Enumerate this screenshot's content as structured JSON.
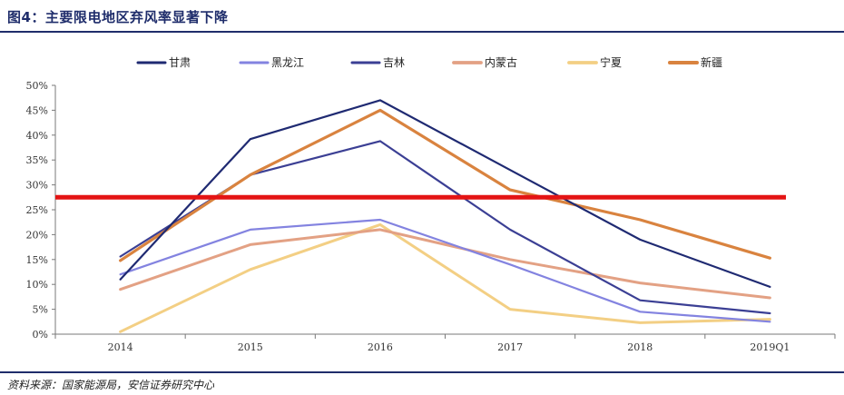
{
  "header": {
    "title": "图4：主要限电地区弃风率显著下降"
  },
  "footer": {
    "source": "资料来源：国家能源局，安信证券研究中心"
  },
  "chart_data": {
    "type": "line",
    "title": "主要限电地区弃风率显著下降",
    "xlabel": "",
    "ylabel": "",
    "categories": [
      "2014",
      "2015",
      "2016",
      "2017",
      "2018",
      "2019Q1"
    ],
    "ylim": [
      0,
      50
    ],
    "yticks": [
      "0%",
      "5%",
      "10%",
      "15%",
      "20%",
      "25%",
      "30%",
      "35%",
      "40%",
      "45%",
      "50%"
    ],
    "series": [
      {
        "name": "甘肃",
        "color": "#1f2a72",
        "values": [
          11,
          39.2,
          47,
          33,
          19,
          9.5
        ]
      },
      {
        "name": "黑龙江",
        "color": "#8383e0",
        "values": [
          12,
          21,
          23,
          14,
          4.5,
          2.5
        ]
      },
      {
        "name": "吉林",
        "color": "#3b3f94",
        "values": [
          15.6,
          32,
          38.8,
          21,
          6.8,
          4.2
        ]
      },
      {
        "name": "内蒙古",
        "color": "#e3a184",
        "values": [
          9,
          18,
          21,
          15,
          10.3,
          7.3
        ]
      },
      {
        "name": "宁夏",
        "color": "#f3cf84",
        "values": [
          0.5,
          13,
          22,
          5,
          2.3,
          3
        ]
      },
      {
        "name": "新疆",
        "color": "#d9833f",
        "values": [
          14.8,
          32,
          45,
          29,
          23,
          15.3
        ]
      }
    ],
    "reference_line": {
      "value": 27.5,
      "color": "#e41414"
    },
    "grid": false,
    "legend": "top"
  }
}
